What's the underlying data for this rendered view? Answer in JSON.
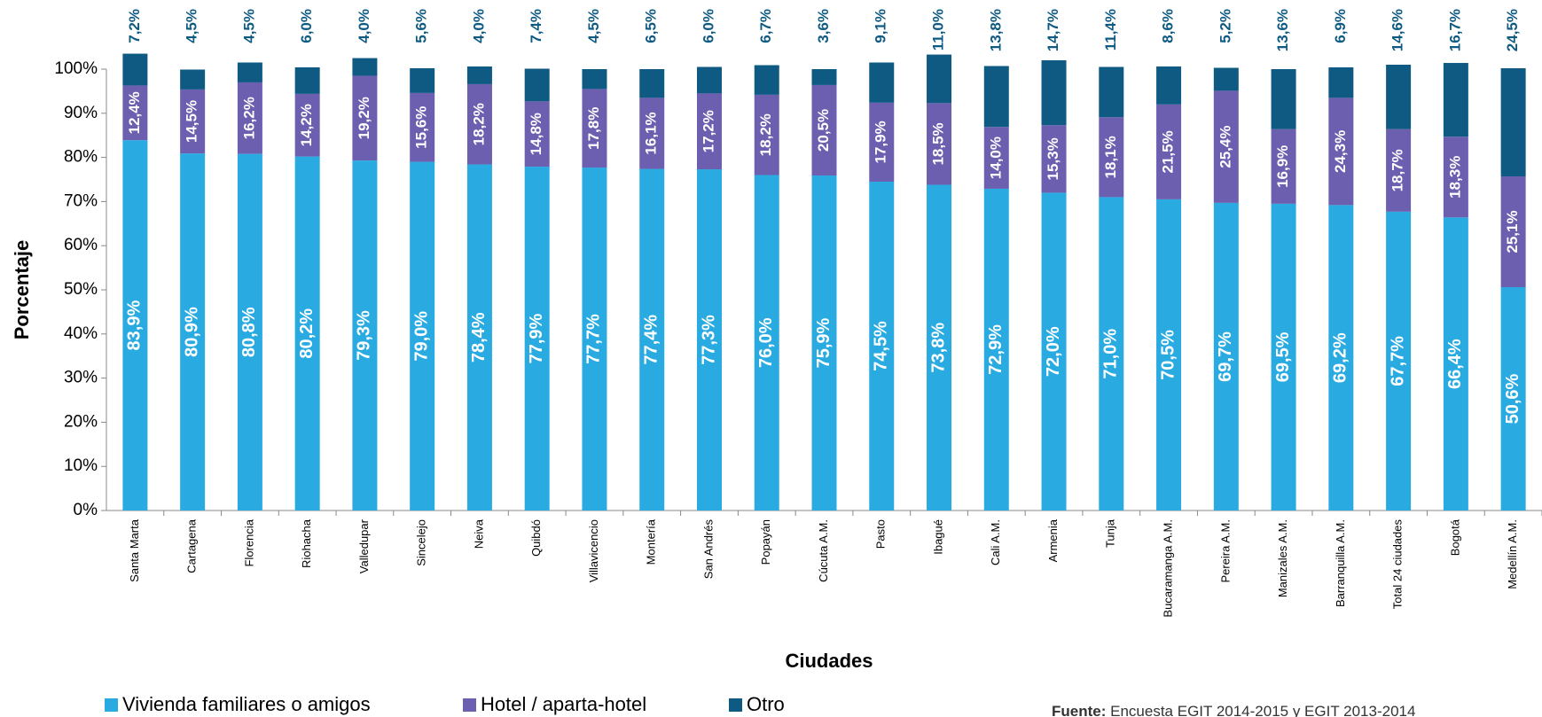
{
  "chart_data": {
    "type": "bar",
    "stacked": true,
    "y_label": "Porcentaje",
    "x_label": "Ciudades",
    "source_label": "Fuente:",
    "source": "Encuesta EGIT 2014-2015 y EGIT 2013-2014",
    "categories": [
      "Santa Marta",
      "Cartagena",
      "Florencia",
      "Riohacha",
      "Valledupar",
      "Sincelejo",
      "Neiva",
      "Quibdó",
      "Villavicencio",
      "Montería",
      "San Andrés",
      "Popayán",
      "Cúcuta A.M.",
      "Pasto",
      "Ibagué",
      "Cali A.M.",
      "Armenia",
      "Tunja",
      "Bucaramanga A.M.",
      "Pereira A.M.",
      "Manizales A.M.",
      "Barranquilla A.M.",
      "Total 24 ciudades",
      "Bogotá",
      "Medellín A.M."
    ],
    "series": [
      {
        "name": "Vivienda familiares o amigos",
        "color": "#29abe2",
        "values": [
          83.9,
          80.9,
          80.8,
          80.2,
          79.3,
          79.0,
          78.4,
          77.9,
          77.7,
          77.4,
          77.3,
          76.0,
          75.9,
          74.5,
          73.8,
          72.9,
          72.0,
          71.0,
          70.5,
          69.7,
          69.5,
          69.2,
          67.7,
          66.4,
          50.6
        ],
        "value_labels": [
          "83,9%",
          "80,9%",
          "80,8%",
          "80,2%",
          "79,3%",
          "79,0%",
          "78,4%",
          "77,9%",
          "77,7%",
          "77,4%",
          "77,3%",
          "76,0%",
          "75,9%",
          "74,5%",
          "73,8%",
          "72,9%",
          "72,0%",
          "71,0%",
          "70,5%",
          "69,7%",
          "69,5%",
          "69,2%",
          "67,7%",
          "66,4%",
          "50,6%"
        ]
      },
      {
        "name": "Hotel / aparta-hotel",
        "color": "#6c5fb0",
        "values": [
          12.4,
          14.5,
          16.2,
          14.2,
          19.2,
          15.6,
          18.2,
          14.8,
          17.8,
          16.1,
          17.2,
          18.2,
          20.5,
          17.9,
          18.5,
          14.0,
          15.3,
          18.1,
          21.5,
          25.4,
          16.9,
          24.3,
          18.7,
          18.3,
          25.1
        ],
        "value_labels": [
          "12,4%",
          "14,5%",
          "16,2%",
          "14,2%",
          "19,2%",
          "15,6%",
          "18,2%",
          "14,8%",
          "17,8%",
          "16,1%",
          "17,2%",
          "18,2%",
          "20,5%",
          "17,9%",
          "18,5%",
          "14,0%",
          "15,3%",
          "18,1%",
          "21,5%",
          "25,4%",
          "16,9%",
          "24,3%",
          "18,7%",
          "18,3%",
          "25,1%"
        ]
      },
      {
        "name": "Otro",
        "color": "#0e5a82",
        "values": [
          7.2,
          4.5,
          4.5,
          6.0,
          4.0,
          5.6,
          4.0,
          7.4,
          4.5,
          6.5,
          6.0,
          6.7,
          3.6,
          9.1,
          11.0,
          13.8,
          14.7,
          11.4,
          8.6,
          5.2,
          13.6,
          6.9,
          14.6,
          16.7,
          24.5
        ],
        "value_labels": [
          "7,2%",
          "4,5%",
          "4,5%",
          "6,0%",
          "4,0%",
          "5,6%",
          "4,0%",
          "7,4%",
          "4,5%",
          "6,5%",
          "6,0%",
          "6,7%",
          "3,6%",
          "9,1%",
          "11,0%",
          "13,8%",
          "14,7%",
          "11,4%",
          "8,6%",
          "5,2%",
          "13,6%",
          "6,9%",
          "14,6%",
          "16,7%",
          "24,5%"
        ]
      }
    ],
    "ylim": [
      0,
      100
    ],
    "yticks": [
      {
        "value": 0,
        "label": "0%"
      },
      {
        "value": 10,
        "label": "10%"
      },
      {
        "value": 20,
        "label": "20%"
      },
      {
        "value": 30,
        "label": "30%"
      },
      {
        "value": 40,
        "label": "40%"
      },
      {
        "value": 50,
        "label": "50%"
      },
      {
        "value": 60,
        "label": "60%"
      },
      {
        "value": 70,
        "label": "70%"
      },
      {
        "value": 80,
        "label": "80%"
      },
      {
        "value": 90,
        "label": "90%"
      },
      {
        "value": 100,
        "label": "100%"
      }
    ]
  }
}
